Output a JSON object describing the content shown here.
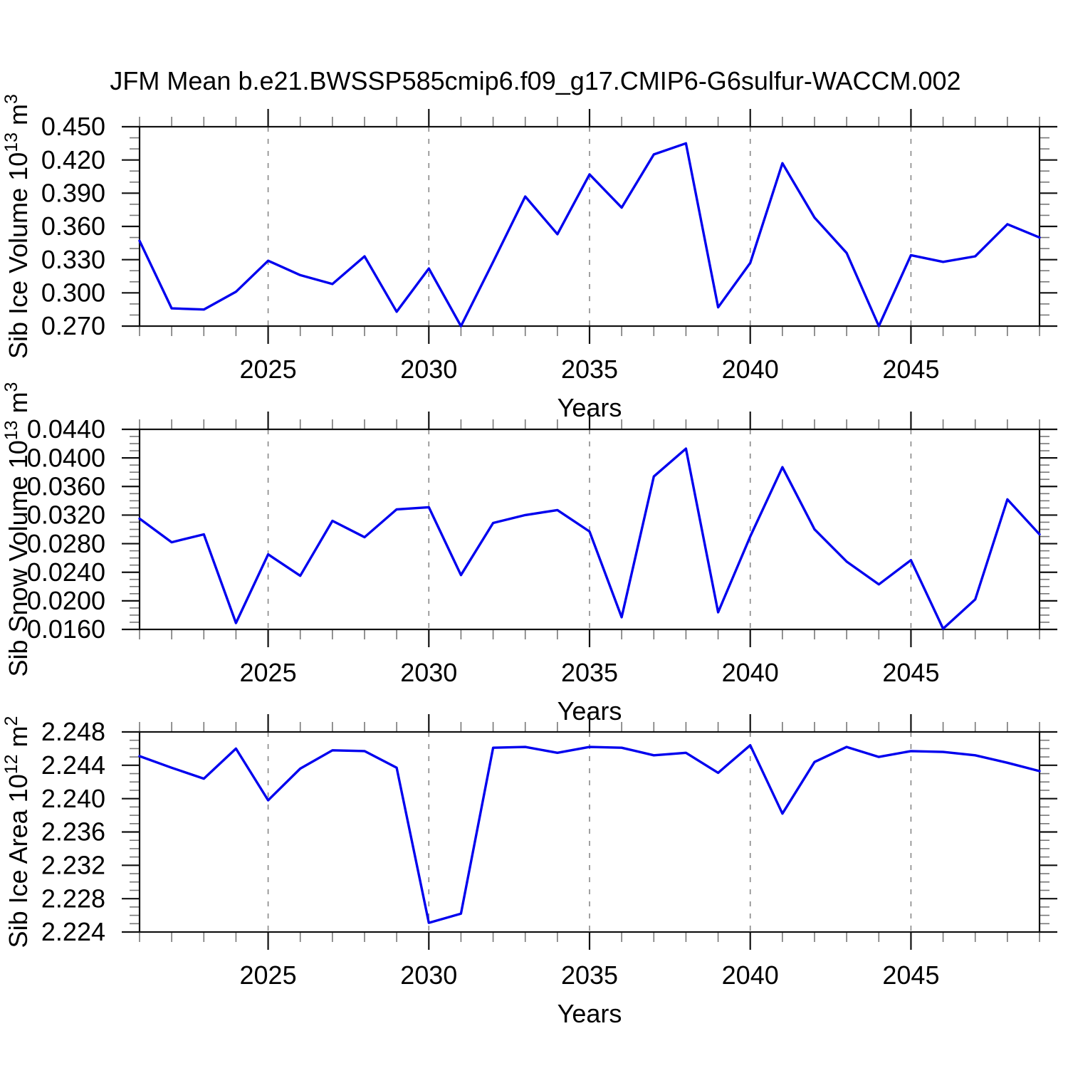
{
  "title": "JFM Mean b.e21.BWSSP585cmip6.f09_g17.CMIP6-G6sulfur-WACCM.002",
  "line_color": "#0000ee",
  "grid_color": "#888888",
  "chart_data": [
    {
      "type": "line",
      "name": "sib-ice-volume",
      "ylabel": "Sib Ice Volume 10^13 m^3",
      "ylabel_parts": [
        [
          "Sib Ice Volume 10",
          false
        ],
        [
          "13",
          true
        ],
        [
          " m",
          false
        ],
        [
          "3",
          true
        ]
      ],
      "xlabel": "Years",
      "xlim": [
        2021,
        2049
      ],
      "ylim": [
        0.27,
        0.45
      ],
      "yticks": [
        "0.270",
        "0.300",
        "0.330",
        "0.360",
        "0.390",
        "0.420",
        "0.450"
      ],
      "ytick_minor_step": 0.01,
      "xticks": [
        "2025",
        "2030",
        "2035",
        "2040",
        "2045"
      ],
      "xtick_minor_step": 1,
      "grid_x": [
        2025,
        2030,
        2035,
        2040,
        2045
      ],
      "legend": "none",
      "grid": "x-dashed",
      "years": [
        2021,
        2022,
        2023,
        2024,
        2025,
        2026,
        2027,
        2028,
        2029,
        2030,
        2031,
        2032,
        2033,
        2034,
        2035,
        2036,
        2037,
        2038,
        2039,
        2040,
        2041,
        2042,
        2043,
        2044,
        2045,
        2046,
        2047,
        2048,
        2049
      ],
      "values": [
        0.347,
        0.286,
        0.285,
        0.301,
        0.329,
        0.316,
        0.308,
        0.333,
        0.283,
        0.322,
        0.27,
        0.328,
        0.387,
        0.353,
        0.407,
        0.377,
        0.425,
        0.435,
        0.287,
        0.327,
        0.417,
        0.368,
        0.336,
        0.27,
        0.334,
        0.328,
        0.333,
        0.362,
        0.35
      ]
    },
    {
      "type": "line",
      "name": "sib-snow-volume",
      "ylabel": "Sib Snow Volume 10^13 m^3",
      "ylabel_parts": [
        [
          "Sib Snow Volume 10",
          false
        ],
        [
          "13",
          true
        ],
        [
          " m",
          false
        ],
        [
          "3",
          true
        ]
      ],
      "xlabel": "Years",
      "xlim": [
        2021,
        2049
      ],
      "ylim": [
        0.016,
        0.044
      ],
      "yticks": [
        "0.0160",
        "0.0200",
        "0.0240",
        "0.0280",
        "0.0320",
        "0.0360",
        "0.0400",
        "0.0440"
      ],
      "ytick_minor_step": 0.001,
      "xticks": [
        "2025",
        "2030",
        "2035",
        "2040",
        "2045"
      ],
      "xtick_minor_step": 1,
      "grid_x": [
        2025,
        2030,
        2035,
        2040,
        2045
      ],
      "legend": "none",
      "grid": "x-dashed",
      "years": [
        2021,
        2022,
        2023,
        2024,
        2025,
        2026,
        2027,
        2028,
        2029,
        2030,
        2031,
        2032,
        2033,
        2034,
        2035,
        2036,
        2037,
        2038,
        2039,
        2040,
        2041,
        2042,
        2043,
        2044,
        2045,
        2046,
        2047,
        2048,
        2049
      ],
      "values": [
        0.0315,
        0.0282,
        0.0293,
        0.0169,
        0.0265,
        0.0235,
        0.0312,
        0.0289,
        0.0328,
        0.0331,
        0.0236,
        0.0309,
        0.032,
        0.0327,
        0.0297,
        0.0177,
        0.0374,
        0.0413,
        0.0184,
        0.029,
        0.0387,
        0.03,
        0.0255,
        0.0223,
        0.0257,
        0.0161,
        0.0202,
        0.0342,
        0.0293
      ]
    },
    {
      "type": "line",
      "name": "sib-ice-area",
      "ylabel": "Sib Ice Area 10^12 m^2",
      "ylabel_parts": [
        [
          "Sib Ice Area 10",
          false
        ],
        [
          "12",
          true
        ],
        [
          " m",
          false
        ],
        [
          "2",
          true
        ]
      ],
      "xlabel": "Years",
      "xlim": [
        2021,
        2049
      ],
      "ylim": [
        2.224,
        2.248
      ],
      "yticks": [
        "2.224",
        "2.228",
        "2.232",
        "2.236",
        "2.240",
        "2.244",
        "2.248"
      ],
      "ytick_minor_step": 0.001,
      "xticks": [
        "2025",
        "2030",
        "2035",
        "2040",
        "2045"
      ],
      "xtick_minor_step": 1,
      "grid_x": [
        2025,
        2030,
        2035,
        2040,
        2045
      ],
      "legend": "none",
      "grid": "x-dashed",
      "years": [
        2021,
        2022,
        2023,
        2024,
        2025,
        2026,
        2027,
        2028,
        2029,
        2030,
        2031,
        2032,
        2033,
        2034,
        2035,
        2036,
        2037,
        2038,
        2039,
        2040,
        2041,
        2042,
        2043,
        2044,
        2045,
        2046,
        2047,
        2048,
        2049
      ],
      "values": [
        2.2451,
        2.2437,
        2.2424,
        2.246,
        2.2398,
        2.2436,
        2.2458,
        2.2457,
        2.2437,
        2.2251,
        2.2262,
        2.2461,
        2.2462,
        2.2455,
        2.2462,
        2.2461,
        2.2452,
        2.2455,
        2.2431,
        2.2464,
        2.2382,
        2.2444,
        2.2462,
        2.245,
        2.2457,
        2.2456,
        2.2452,
        2.2443,
        2.2433
      ]
    }
  ]
}
